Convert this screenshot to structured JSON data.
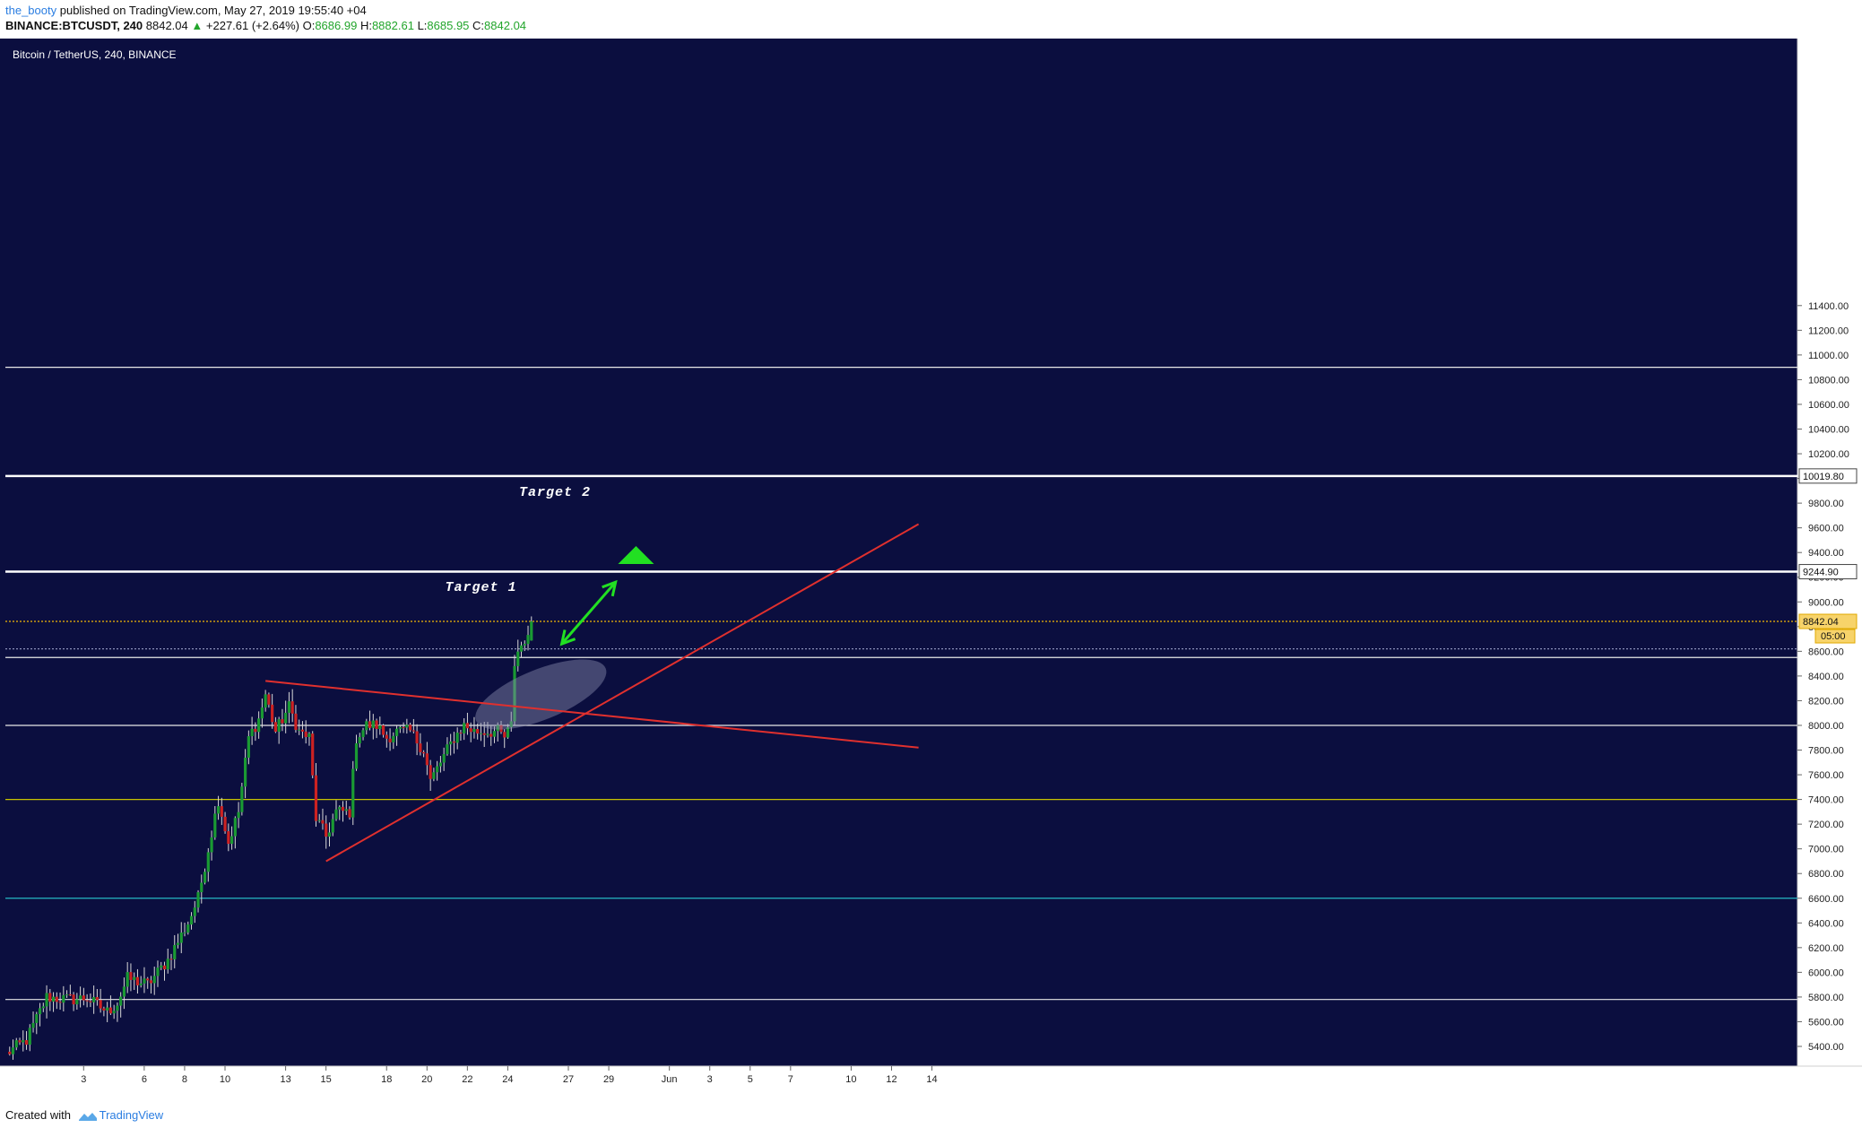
{
  "header": {
    "author": "the_booty",
    "published_text": "published on TradingView.com, May 27, 2019 19:55:40 +04",
    "symbol": "BINANCE:BTCUSDT, 240",
    "last": "8842.04",
    "change": "+227.61 (+2.64%)",
    "o_label": "O:",
    "o_value": "8686.99",
    "h_label": "H:",
    "h_value": "8882.61",
    "l_label": "L:",
    "l_value": "8685.95",
    "c_label": "C:",
    "c_value": "8842.04"
  },
  "footer": {
    "created_with": "Created with",
    "brand": "TradingView"
  },
  "chart_data": {
    "type": "candlestick",
    "title": "Bitcoin / TetherUS, 240, BINANCE",
    "ylim": [
      5200,
      11600
    ],
    "y_ticks": [
      5400,
      5600,
      5800,
      6000,
      6200,
      6400,
      6600,
      6800,
      7000,
      7200,
      7400,
      7600,
      7800,
      8000,
      8200,
      8400,
      8600,
      8800,
      9000,
      9200,
      9400,
      9600,
      9800,
      10000,
      10200,
      10400,
      10600,
      10800,
      11000,
      11200,
      11400
    ],
    "y_tick_labels": [
      "5400.00",
      "5600.00",
      "5800.00",
      "6000.00",
      "6200.00",
      "6400.00",
      "6600.00",
      "6800.00",
      "7000.00",
      "7200.00",
      "7400.00",
      "7600.00",
      "7800.00",
      "8000.00",
      "8200.00",
      "8400.00",
      "8600.00",
      "8800.00",
      "9000.00",
      "9200.00",
      "9400.00",
      "9600.00",
      "9800.00",
      "10000.00",
      "10200.00",
      "10400.00",
      "10600.00",
      "10800.00",
      "11000.00",
      "11200.00",
      "11400.00"
    ],
    "x_ticks": [
      {
        "label": "3",
        "i": 7
      },
      {
        "label": "6",
        "i": 25
      },
      {
        "label": "8",
        "i": 37
      },
      {
        "label": "10",
        "i": 49
      },
      {
        "label": "13",
        "i": 67
      },
      {
        "label": "15",
        "i": 79
      },
      {
        "label": "18",
        "i": 97
      },
      {
        "label": "20",
        "i": 109
      },
      {
        "label": "22",
        "i": 121
      },
      {
        "label": "24",
        "i": 133
      },
      {
        "label": "27",
        "i": 151
      },
      {
        "label": "29",
        "i": 163
      },
      {
        "label": "Jun",
        "i": 181
      },
      {
        "label": "3",
        "i": 193
      },
      {
        "label": "5",
        "i": 205
      },
      {
        "label": "7",
        "i": 217
      },
      {
        "label": "10",
        "i": 235
      },
      {
        "label": "12",
        "i": 247
      },
      {
        "label": "14",
        "i": 259
      }
    ],
    "candle_keypoints": [
      [
        0,
        5340
      ],
      [
        6,
        5450
      ],
      [
        12,
        5800
      ],
      [
        18,
        5780
      ],
      [
        24,
        5790
      ],
      [
        30,
        5680
      ],
      [
        33,
        5750
      ],
      [
        36,
        5950
      ],
      [
        42,
        5900
      ],
      [
        48,
        6100
      ],
      [
        54,
        6400
      ],
      [
        57,
        6600
      ],
      [
        60,
        7000
      ],
      [
        63,
        7400
      ],
      [
        66,
        7050
      ],
      [
        69,
        7300
      ],
      [
        72,
        7900
      ],
      [
        75,
        8050
      ],
      [
        77,
        8250
      ],
      [
        80,
        7950
      ],
      [
        84,
        8150
      ],
      [
        87,
        7950
      ],
      [
        90,
        7900
      ],
      [
        92,
        7250
      ],
      [
        95,
        7100
      ],
      [
        98,
        7300
      ],
      [
        102,
        7300
      ],
      [
        104,
        7900
      ],
      [
        107,
        8000
      ],
      [
        110,
        8000
      ],
      [
        113,
        7900
      ],
      [
        116,
        7950
      ],
      [
        120,
        7950
      ],
      [
        124,
        7800
      ],
      [
        126,
        7550
      ],
      [
        129,
        7700
      ],
      [
        133,
        7900
      ],
      [
        136,
        8000
      ],
      [
        139,
        7950
      ],
      [
        142,
        7950
      ],
      [
        146,
        7950
      ],
      [
        148,
        7900
      ],
      [
        149,
        7950
      ],
      [
        150,
        8000
      ],
      [
        151,
        8500
      ],
      [
        152,
        8600
      ],
      [
        153,
        8650
      ],
      [
        154,
        8700
      ],
      [
        155,
        8690
      ]
    ],
    "last_candle": {
      "open": 8686.99,
      "high": 8882.61,
      "low": 8685.95,
      "close": 8842.04
    },
    "horizontal_levels": [
      {
        "price": 10900,
        "color": "#e8e8e8",
        "style": "solid"
      },
      {
        "price": 10019.8,
        "color": "#ffffff",
        "style": "solid",
        "label": "10019.80"
      },
      {
        "price": 9244.9,
        "color": "#ffffff",
        "style": "solid",
        "label": "9244.90"
      },
      {
        "price": 8842.04,
        "color": "#f2b705",
        "style": "dotted",
        "label": "8842.04",
        "sublabel": "05:00"
      },
      {
        "price": 8620,
        "color": "#8a8fb8",
        "style": "dotted"
      },
      {
        "price": 8550,
        "color": "#e8e8e8",
        "style": "solid"
      },
      {
        "price": 8000,
        "color": "#e8e8e8",
        "style": "solid"
      },
      {
        "price": 7400,
        "color": "#c8c200",
        "style": "solid"
      },
      {
        "price": 6600,
        "color": "#26b7c4",
        "style": "solid"
      },
      {
        "price": 5780,
        "color": "#e8e8e8",
        "style": "solid"
      }
    ],
    "trend_lines": [
      {
        "x1": 77,
        "y1": 8360,
        "x2": 271,
        "y2": 7820,
        "color": "#e0302e"
      },
      {
        "x1": 95,
        "y1": 6900,
        "x2": 271,
        "y2": 9630,
        "color": "#e0302e"
      }
    ],
    "annotations": [
      {
        "text": "Target 2",
        "i": 163,
        "price": 9860
      },
      {
        "text": "Target 1",
        "i": 141,
        "price": 9090
      }
    ],
    "arrow": {
      "x1": 165,
      "y1": 8660,
      "x2": 181,
      "y2": 9160,
      "color": "#22e022"
    },
    "triangle_marker": {
      "i": 186,
      "price": 9380,
      "color": "#22e022"
    },
    "ellipse": {
      "i": 158,
      "price": 8250
    }
  },
  "colors": {
    "background": "#0b0e3f",
    "up": "#1a9a33",
    "down": "#cc2222",
    "axis_bg": "#ffffff",
    "axis_text": "#222222"
  }
}
